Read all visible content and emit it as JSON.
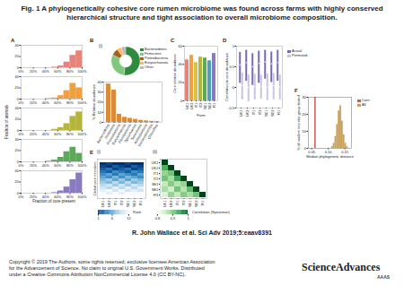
{
  "header": {
    "title": "Fig. 1 A phylogenetically cohesive core rumen microbiome was found across farms with highly conserved hierarchical structure and tight association to overall microbiome composition."
  },
  "chart_data": [
    {
      "panel": "A",
      "type": "histogram",
      "xlabel": "Fraction of core present",
      "ylabel": "Fraction of animals",
      "bins": [
        0,
        10,
        20,
        30,
        40,
        50,
        60,
        70,
        80,
        90,
        100
      ],
      "xlim": [
        0,
        100
      ],
      "xticks": [
        {
          "value": 0,
          "label": "0%"
        },
        {
          "value": 20,
          "label": "20%"
        },
        {
          "value": 40,
          "label": "40%"
        },
        {
          "value": 60,
          "label": "60%"
        },
        {
          "value": 80,
          "label": "80%"
        },
        {
          "value": 100,
          "label": "100%"
        }
      ],
      "ylim": [
        0,
        40
      ],
      "yticks": [
        0,
        20,
        40
      ],
      "series": [
        {
          "color": "#e8837a",
          "values": [
            0,
            0,
            0,
            0,
            0,
            1,
            3,
            10,
            22,
            30
          ]
        },
        {
          "color": "#f0a040",
          "values": [
            0,
            0,
            0,
            0,
            1,
            2,
            6,
            15,
            28,
            20
          ]
        },
        {
          "color": "#b5b53a",
          "values": [
            0,
            0,
            0,
            0,
            0,
            2,
            5,
            12,
            25,
            33
          ]
        },
        {
          "color": "#5aaa5a",
          "values": [
            0,
            0,
            0,
            0,
            1,
            3,
            8,
            18,
            26,
            15
          ]
        },
        {
          "color": "#8a7ac0",
          "values": [
            0,
            0,
            0,
            0,
            0,
            1,
            4,
            11,
            24,
            36
          ]
        }
      ]
    },
    {
      "panel": "B",
      "type": "bar",
      "ylabel": "% Relative abundance",
      "categories": [
        "Bacteroidetes",
        "Firmicutes",
        "Proteobacteria",
        "Euryarchaeota",
        "Fibrobacteres",
        "Spirochaetes",
        "Tenericutes",
        "Actinobacteria",
        "Verrucomicrobia",
        "Chloroflexi"
      ],
      "values": [
        38,
        32,
        8,
        5,
        4,
        3,
        2,
        1.5,
        1,
        0.8
      ],
      "color": "#d98b3a",
      "ylim": [
        0,
        40
      ],
      "yticks": [
        0,
        10,
        20,
        30,
        40
      ],
      "pie": {
        "title": "(i)",
        "categories": [
          "Bacteroidetes",
          "Firmicutes",
          "Proteobacteria",
          "Euryarchaeota",
          "Other"
        ],
        "values": [
          52,
          30,
          8,
          5,
          5
        ],
        "colors": [
          "#2e8b3e",
          "#7fc97f",
          "#a6611a",
          "#fdb863",
          "#bbbbbb"
        ]
      }
    },
    {
      "panel": "C",
      "type": "bar",
      "xlabel": "Farm",
      "ylabel": "Core relative abundance",
      "categories": [
        "UK1",
        "UK2",
        "IT1",
        "IT2",
        "SE1",
        "SE2",
        "FI1"
      ],
      "values": [
        45,
        50,
        42,
        48,
        47,
        44,
        52
      ],
      "colors": [
        "#e8837a",
        "#f0a040",
        "#d9c04a",
        "#b5b53a",
        "#5aaa5a",
        "#4aa3b5",
        "#8a7ac0"
      ],
      "ylim": [
        0,
        60
      ],
      "yticks": [
        0,
        20,
        40,
        60
      ]
    },
    {
      "panel": "D",
      "type": "range",
      "ylabel": "Correlation to core abundance",
      "categories": [
        "UK1",
        "UK2",
        "IT1",
        "IT2",
        "SE1",
        "SE2",
        "FI1"
      ],
      "ylim": [
        -0.5,
        1
      ],
      "yticks": [
        -0.5,
        0,
        0.5,
        1
      ],
      "series": [
        {
          "name": "Actual",
          "color": "#7b68b5",
          "values": [
            0.55,
            0.6,
            0.5,
            0.58,
            0.62,
            0.57,
            0.6
          ],
          "low": [
            0.1,
            0.15,
            0.05,
            0.1,
            0.2,
            0.12,
            0.15
          ],
          "high": [
            0.85,
            0.9,
            0.82,
            0.88,
            0.9,
            0.86,
            0.9
          ]
        },
        {
          "name": "Permuted",
          "color": "#c9c3e0",
          "values": [
            0.05,
            0,
            0.02,
            0.03,
            0,
            0.04,
            0.01
          ],
          "low": [
            -0.3,
            -0.35,
            -0.3,
            -0.28,
            -0.32,
            -0.3,
            -0.3
          ],
          "high": [
            0.35,
            0.3,
            0.32,
            0.3,
            0.33,
            0.34,
            0.3
          ]
        }
      ]
    },
    {
      "panel": "E",
      "subpanel": "(i)",
      "type": "heatmap",
      "ylabel": "Global core microbes",
      "categories": [
        "UK1",
        "UK2",
        "IT1",
        "IT2",
        "SE1",
        "SE2",
        "FI1"
      ],
      "cells": [
        [
          1,
          2,
          1,
          1,
          2,
          1,
          1
        ],
        [
          2,
          1,
          3,
          2,
          1,
          3,
          2
        ],
        [
          3,
          4,
          2,
          3,
          4,
          2,
          3
        ],
        [
          4,
          3,
          5,
          4,
          3,
          5,
          4
        ],
        [
          5,
          6,
          4,
          6,
          5,
          4,
          6
        ],
        [
          6,
          5,
          7,
          5,
          7,
          6,
          5
        ],
        [
          7,
          8,
          6,
          8,
          6,
          8,
          7
        ],
        [
          8,
          7,
          9,
          7,
          9,
          7,
          8
        ],
        [
          9,
          10,
          8,
          10,
          8,
          10,
          9
        ],
        [
          10,
          9,
          11,
          9,
          11,
          9,
          11
        ],
        [
          11,
          12,
          10,
          12,
          10,
          11,
          10
        ],
        [
          12,
          11,
          12,
          11,
          12,
          12,
          12
        ]
      ],
      "colorbar": {
        "label": "Rank",
        "range": [
          1,
          12
        ],
        "ticks": [
          1,
          6,
          12
        ]
      }
    },
    {
      "subpanel": "(ii)",
      "type": "heatmap",
      "categories": [
        "UK1",
        "UK2",
        "IT1",
        "IT2",
        "SE1",
        "SE2",
        "FI1"
      ],
      "y_categories": [
        "UK1",
        "UK2",
        "IT1",
        "IT2",
        "SE1",
        "SE2",
        "FI1"
      ],
      "cells": [
        [
          1,
          null,
          null,
          null,
          null,
          null,
          null
        ],
        [
          0.92,
          1,
          null,
          null,
          null,
          null,
          null
        ],
        [
          0.88,
          0.9,
          1,
          null,
          null,
          null,
          null
        ],
        [
          0.9,
          0.87,
          0.93,
          1,
          null,
          null,
          null
        ],
        [
          0.85,
          0.89,
          0.86,
          0.88,
          1,
          null,
          null
        ],
        [
          0.87,
          0.84,
          0.9,
          0.86,
          0.91,
          1,
          null
        ],
        [
          0.83,
          0.88,
          0.85,
          0.89,
          0.87,
          0.9,
          1
        ]
      ],
      "colorbar": {
        "label": "Correlation (Spearman)",
        "range": [
          0.8,
          1
        ],
        "ticks": [
          0.8,
          0.9,
          1
        ]
      }
    },
    {
      "panel": "F",
      "type": "histogram",
      "xlabel": "Median phylogenetic distance",
      "ylabel": "% of random microbe group tested",
      "xlim": [
        0.04,
        0.17
      ],
      "xticks": [
        0.05,
        {
          "value": 0.1,
          "label": "0.10"
        },
        0.15
      ],
      "ylim": [
        0,
        30
      ],
      "yticks": [
        0,
        10,
        20,
        30
      ],
      "series": [
        {
          "name": "Core",
          "color": "#d9534f",
          "values": [
            0.06
          ]
        },
        {
          "name": "All",
          "color": "#c9a25a",
          "bins": [
            0.11,
            0.115,
            0.12,
            0.125,
            0.13,
            0.135,
            0.14,
            0.145,
            0.15,
            0.155,
            0.16
          ],
          "values": [
            1,
            3,
            7,
            14,
            22,
            25,
            16,
            8,
            3,
            1
          ]
        }
      ]
    }
  ],
  "footer": {
    "citation": "R. John Wallace et al. Sci Adv 2019;5:eaav8391",
    "copyright": [
      "Copyright © 2019 The Authors, some rights reserved; exclusive licensee American Association",
      "for the Advancement of Science. No claim to original U.S. Government Works. Distributed",
      "under a Creative Commons Attribution NonCommercial License 4.0 (CC BY-NC)."
    ],
    "logo": "ScienceAdvances",
    "publisher": "AAAS"
  }
}
